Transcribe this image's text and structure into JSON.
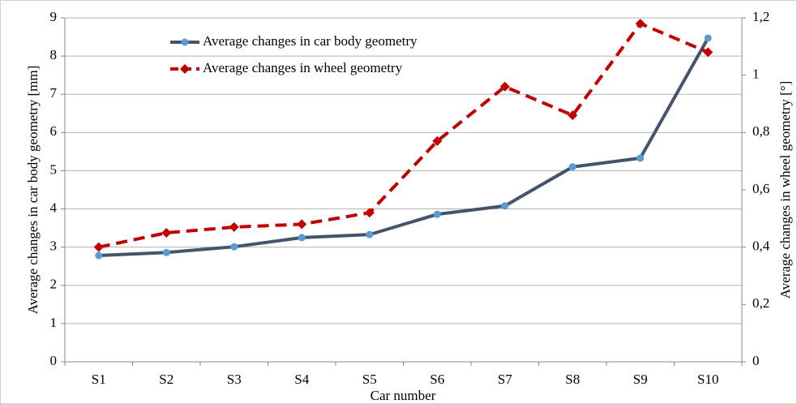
{
  "chart_data": {
    "type": "line",
    "x_label": "Car number",
    "y_label": "Average changes in car body geometry [mm]",
    "y2_label": "Average changes in wheel geometry  [°]",
    "categories": [
      "S1",
      "S2",
      "S3",
      "S4",
      "S5",
      "S6",
      "S7",
      "S8",
      "S9",
      "S10"
    ],
    "series": [
      {
        "name": "Average changes in car body geometry",
        "color": "#44546a",
        "marker_color": "#5b9bd5",
        "marker": "circle",
        "style": "solid",
        "values": [
          2.78,
          2.86,
          3.01,
          3.25,
          3.33,
          3.86,
          4.08,
          5.1,
          5.33,
          8.47
        ]
      },
      {
        "name": "Average changes in wheel geometry",
        "color": "#c00000",
        "marker_color": "#c00000",
        "marker": "diamond",
        "style": "dashed",
        "axis": "y2",
        "values": [
          0.4,
          0.45,
          0.47,
          0.48,
          0.52,
          0.77,
          0.96,
          0.86,
          1.18,
          1.08
        ]
      }
    ],
    "ylim": [
      0,
      9
    ],
    "yticks": [
      0,
      1,
      2,
      3,
      4,
      5,
      6,
      7,
      8,
      9
    ],
    "y2lim": [
      0,
      1.2
    ],
    "y2ticks": [
      0,
      {
        "value": 0.2,
        "label": "0,2"
      },
      {
        "value": 0.4,
        "label": "0,4"
      },
      {
        "value": 0.6,
        "label": "0,6"
      },
      {
        "value": 0.8,
        "label": "0,8"
      },
      1,
      {
        "value": 1.2,
        "label": "1,2"
      }
    ],
    "grid": true,
    "legend": "upper left"
  }
}
